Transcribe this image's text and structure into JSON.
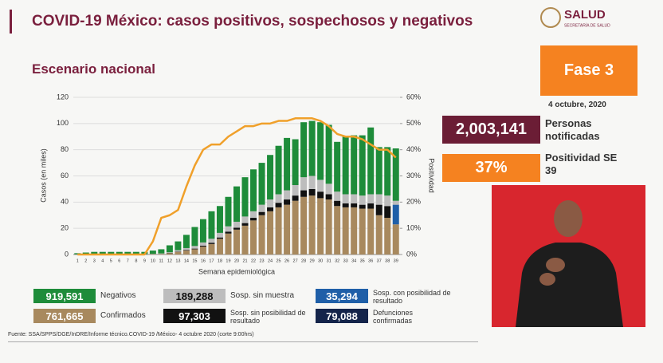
{
  "header": {
    "title": "COVID-19 México: casos positivos, sospechosos y negativos",
    "subtitle": "Escenario nacional",
    "logo": "SALUD",
    "logo_sub": "SECRETARÍA DE SALUD",
    "phase": "Fase 3",
    "date": "4 octubre, 2020"
  },
  "stats": [
    {
      "value": "2,003,141",
      "label": "Personas notificadas"
    },
    {
      "value": "37%",
      "label": "Positividad SE 39"
    }
  ],
  "deaths": {
    "total": "79,088",
    "label": "Defunciones confirmadas"
  },
  "footer": "Fuente: SSA/SPPS/DGE/InDRE/Informe técnico.COVID-19 /México- 4 octubre 2020 (corte 9:00hrs)",
  "chart_data": {
    "type": "bar",
    "stacked": true,
    "xlabel": "Semana epidemiológica",
    "ylabel": "Casos (en miles)",
    "y2label": "Positividad",
    "grid": true,
    "categories": [
      "1",
      "2",
      "3",
      "4",
      "5",
      "6",
      "7",
      "8",
      "9",
      "10",
      "11",
      "12",
      "13",
      "14",
      "15",
      "16",
      "17",
      "18",
      "19",
      "20",
      "21",
      "22",
      "23",
      "24",
      "25",
      "26",
      "27",
      "28",
      "29",
      "30",
      "31",
      "32",
      "33",
      "34",
      "35",
      "36",
      "37",
      "38",
      "39"
    ],
    "ylim": [
      0,
      120
    ],
    "yticks": [
      0,
      20,
      40,
      60,
      80,
      100,
      120
    ],
    "y2lim": [
      0,
      60
    ],
    "y2ticks": [
      {
        "value": 0,
        "label": "0%"
      },
      {
        "value": 10,
        "label": "10%"
      },
      {
        "value": 20,
        "label": "20%"
      },
      {
        "value": 30,
        "label": "30%"
      },
      {
        "value": 40,
        "label": "40%"
      },
      {
        "value": 50,
        "label": "50%"
      },
      {
        "value": 60,
        "label": "60%"
      }
    ],
    "series": [
      {
        "name": "Confirmados",
        "total": "761,665",
        "color": "#a8895e",
        "values": [
          0.1,
          0.1,
          0.1,
          0.1,
          0.1,
          0.1,
          0.1,
          0.2,
          0.2,
          0.3,
          0.5,
          1,
          2,
          3,
          4,
          6,
          8,
          12,
          16,
          19,
          22,
          26,
          30,
          33,
          36,
          38,
          41,
          44,
          45,
          43,
          42,
          37,
          36,
          36,
          35,
          35,
          30,
          28,
          23
        ]
      },
      {
        "name": "Sosp. sin posibilidad de resultado",
        "total": "97,303",
        "color": "#111111",
        "values": [
          0,
          0,
          0,
          0,
          0,
          0,
          0,
          0,
          0,
          0,
          0,
          0.2,
          0.3,
          0.4,
          0.5,
          0.7,
          1,
          1,
          1.5,
          1.5,
          2,
          2,
          2.5,
          3,
          3.5,
          4,
          4,
          5,
          5,
          5,
          4,
          4,
          3,
          3,
          3,
          4,
          8,
          9,
          0
        ]
      },
      {
        "name": "Sosp. con posibilidad de resultado",
        "total": "35,294",
        "color": "#1f5fa8",
        "values": [
          0,
          0,
          0,
          0,
          0,
          0,
          0,
          0,
          0,
          0,
          0,
          0,
          0,
          0,
          0,
          0,
          0,
          0,
          0,
          0,
          0,
          0,
          0,
          0,
          0,
          0,
          0,
          0,
          0,
          0,
          0,
          0,
          0,
          0,
          0,
          0,
          0,
          0,
          15
        ]
      },
      {
        "name": "Sosp. sin muestra",
        "total": "189,288",
        "color": "#bdbdbd",
        "values": [
          0.1,
          0.1,
          0.1,
          0.1,
          0.1,
          0.1,
          0.1,
          0.1,
          0.1,
          0.2,
          0.3,
          0.5,
          1,
          1.5,
          2,
          2.5,
          3,
          3.5,
          4,
          4.5,
          5,
          5,
          5.5,
          6,
          6.5,
          7,
          8,
          10,
          10,
          9,
          8,
          7,
          7,
          7,
          7,
          7,
          8,
          8,
          3
        ]
      },
      {
        "name": "Negativos",
        "total": "919,591",
        "color": "#1e8c3a",
        "values": [
          0.8,
          1.3,
          1.8,
          1.8,
          1.8,
          1.8,
          1.8,
          1.7,
          1.7,
          2.5,
          3.2,
          5.3,
          6.7,
          10.1,
          14.5,
          17.8,
          21,
          20.5,
          22.5,
          27,
          30,
          32,
          32,
          34,
          37,
          40,
          35,
          42,
          42,
          44,
          45,
          38,
          44,
          45,
          46,
          51,
          36,
          37,
          40
        ]
      },
      {
        "type": "line",
        "axis": "y2",
        "color": "#f0a02a",
        "values": [
          0,
          0,
          0,
          0,
          0,
          0,
          0,
          0,
          0,
          5,
          14,
          15,
          17,
          26,
          34,
          40,
          42,
          42,
          45,
          47,
          49,
          49,
          50,
          50,
          51,
          51,
          52,
          52,
          52,
          51,
          49,
          46,
          45,
          45,
          44,
          42,
          40,
          40,
          37
        ]
      }
    ]
  }
}
